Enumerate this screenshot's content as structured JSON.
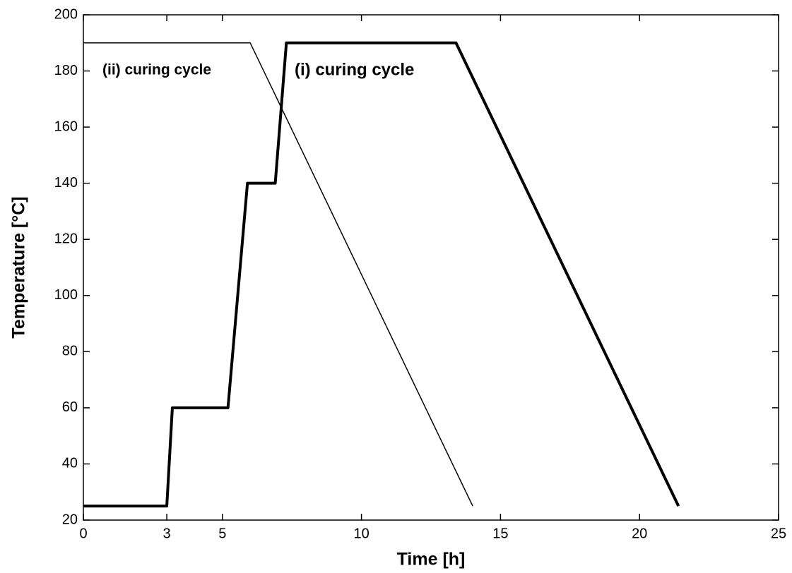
{
  "chart_data": {
    "type": "line",
    "x_label": "Time [h]",
    "y_label": "Temperature [°C]",
    "xlim": [
      0,
      25
    ],
    "xticks": [
      0,
      3,
      5,
      10,
      15,
      20,
      25
    ],
    "ylim": [
      20,
      200
    ],
    "yticks": [
      20,
      40,
      60,
      80,
      100,
      120,
      140,
      160,
      180,
      200
    ],
    "grid": false,
    "series": [
      {
        "name": "(i) curing cycle",
        "color": "#000000",
        "line_width": 4,
        "x": [
          0,
          3,
          3.2,
          5.2,
          5.9,
          6.9,
          7.3,
          13.4,
          21.4
        ],
        "values": [
          25,
          25,
          60,
          60,
          140,
          140,
          190,
          190,
          25
        ]
      },
      {
        "name": "(ii) curing cycle",
        "color": "#000000",
        "line_width": 1.5,
        "x": [
          0,
          6,
          14
        ],
        "values": [
          190,
          190,
          25
        ]
      }
    ]
  }
}
